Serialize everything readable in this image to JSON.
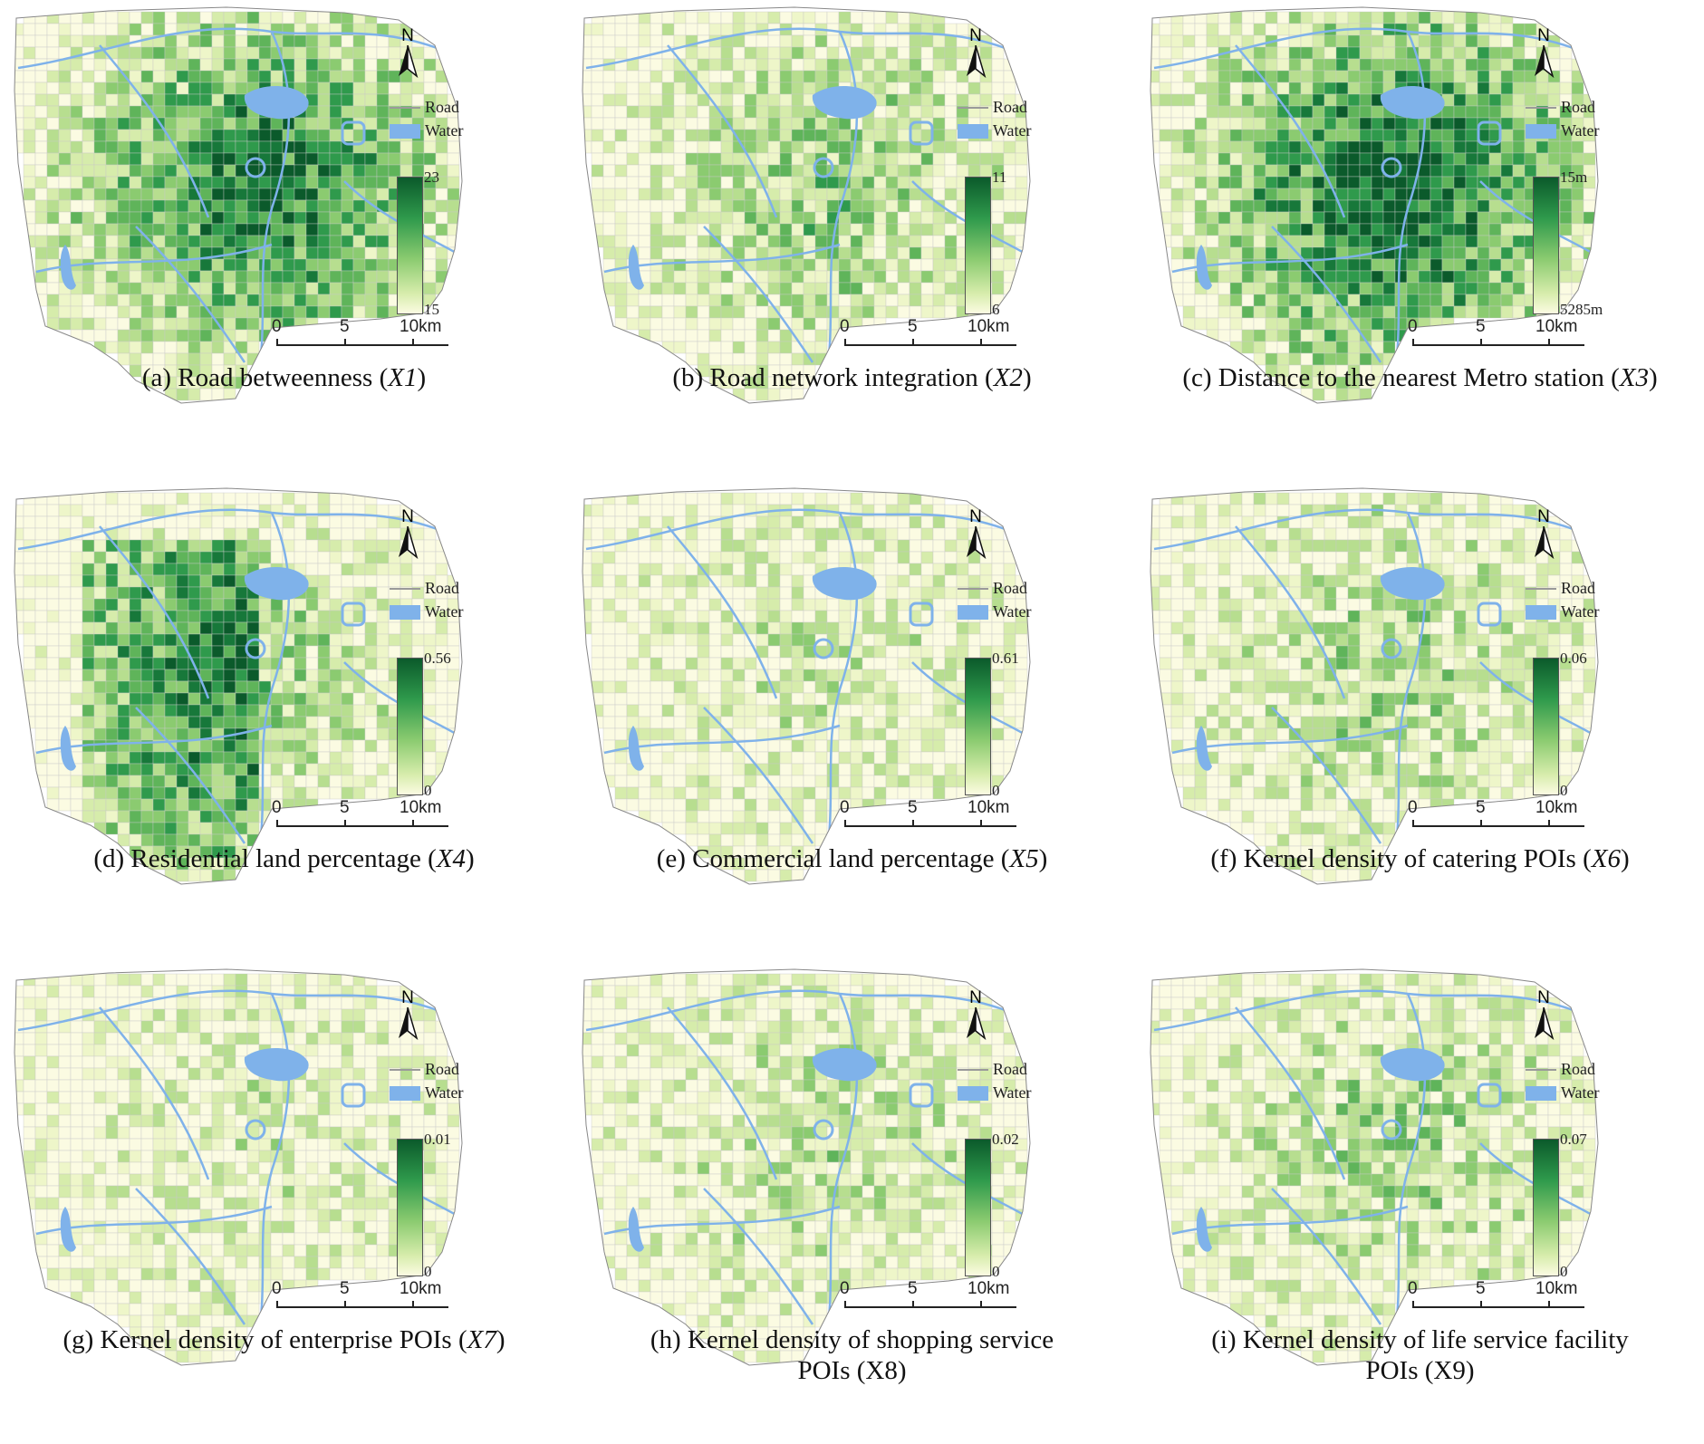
{
  "legend": {
    "road": "Road",
    "water": "Water",
    "north": "N"
  },
  "scalebar": {
    "labels": [
      "0",
      "5",
      "10km"
    ]
  },
  "colors": {
    "ramp_high": "#0b5a2b",
    "ramp_low": "#fbfbe2",
    "road": "#9a9a9a",
    "water": "#7fb2ea"
  },
  "panels": [
    {
      "caption": "(a) Road betweenness (",
      "var": "X1",
      "caption_end": ")",
      "caption2": "",
      "max": "23",
      "min": "15"
    },
    {
      "caption": "(b) Road network integration (",
      "var": "X2",
      "caption_end": ")",
      "caption2": "",
      "max": "11",
      "min": "6"
    },
    {
      "caption": "(c) Distance to the nearest Metro station (",
      "var": "X3",
      "caption_end": ")",
      "caption2": "",
      "max": "15m",
      "min": "5285m"
    },
    {
      "caption": "(d) Residential land percentage (",
      "var": "X4",
      "caption_end": ")",
      "caption2": "",
      "max": "0.56",
      "min": "0"
    },
    {
      "caption": "(e) Commercial land percentage (",
      "var": "X5",
      "caption_end": ")",
      "caption2": "",
      "max": "0.61",
      "min": "0"
    },
    {
      "caption": "(f) Kernel density of catering POIs (",
      "var": "X6",
      "caption_end": ")",
      "caption2": "",
      "max": "0.06",
      "min": "0"
    },
    {
      "caption": "(g) Kernel density of enterprise POIs (",
      "var": "X7",
      "caption_end": ")",
      "caption2": "",
      "max": "0.01",
      "min": "0"
    },
    {
      "caption": "(h) Kernel density of shopping service",
      "var": "",
      "caption_end": "",
      "caption2": "POIs (X8)",
      "max": "0.02",
      "min": "0"
    },
    {
      "caption": "(i) Kernel density of life service facility",
      "var": "",
      "caption_end": "",
      "caption2": "POIs (X9)",
      "max": "0.07",
      "min": "0"
    }
  ]
}
